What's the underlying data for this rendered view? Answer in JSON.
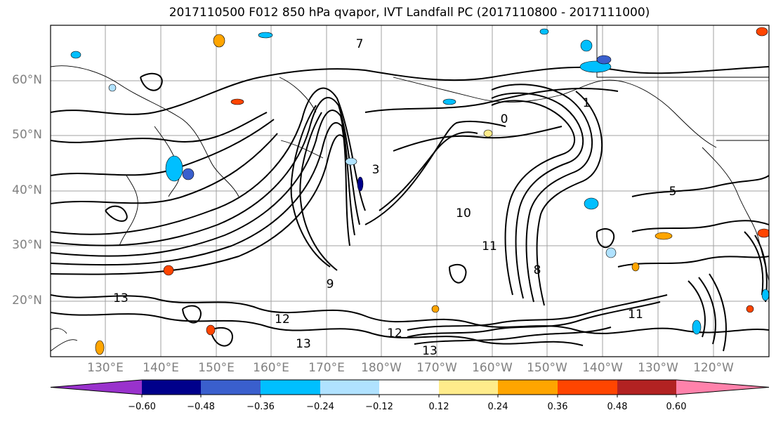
{
  "title": "2017110500 F012 850 hPa qvapor, IVT Landfall PC (2017110800 - 2017111000)",
  "lat_labels": [
    "60°N",
    "50°N",
    "40°N",
    "30°N",
    "20°N"
  ],
  "lon_labels": [
    "130°E",
    "140°E",
    "150°E",
    "160°E",
    "170°E",
    "180°W",
    "170°W",
    "160°W",
    "150°W",
    "140°W",
    "130°W",
    "120°W"
  ],
  "contour_labels": [
    "13",
    "13",
    "13",
    "12",
    "12",
    "11",
    "11",
    "10",
    "9",
    "8",
    "7",
    "5",
    "3",
    "1",
    "0"
  ],
  "colorbar": {
    "colors": [
      "#9932cc",
      "#00008b",
      "#3a5fcd",
      "#00bfff",
      "#b0e2ff",
      "#ffffff",
      "#ffec8b",
      "#ffa500",
      "#ff4500",
      "#b22222",
      "#ff82ab"
    ],
    "tick_labels": [
      "−0.60",
      "−0.48",
      "−0.36",
      "−0.24",
      "−0.12",
      "0.12",
      "0.24",
      "0.36",
      "0.48",
      "0.60"
    ]
  }
}
